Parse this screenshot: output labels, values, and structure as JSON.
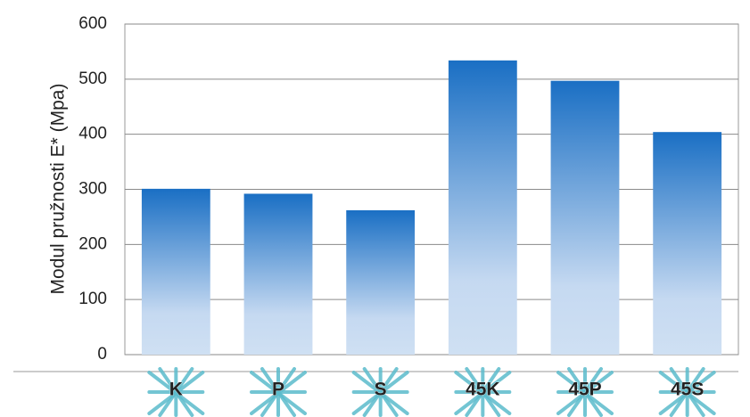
{
  "chart_data": {
    "type": "bar",
    "y_label": "Modul pružnosti E* (Mpa)",
    "categories": [
      "K",
      "P",
      "S",
      "45K",
      "45P",
      "45S"
    ],
    "values": [
      301,
      292,
      262,
      534,
      497,
      404
    ],
    "color": "#1a6fc4",
    "ylim": [
      0,
      600
    ],
    "yticks": [
      0,
      100,
      200,
      300,
      400,
      500,
      600
    ],
    "grid": true
  }
}
